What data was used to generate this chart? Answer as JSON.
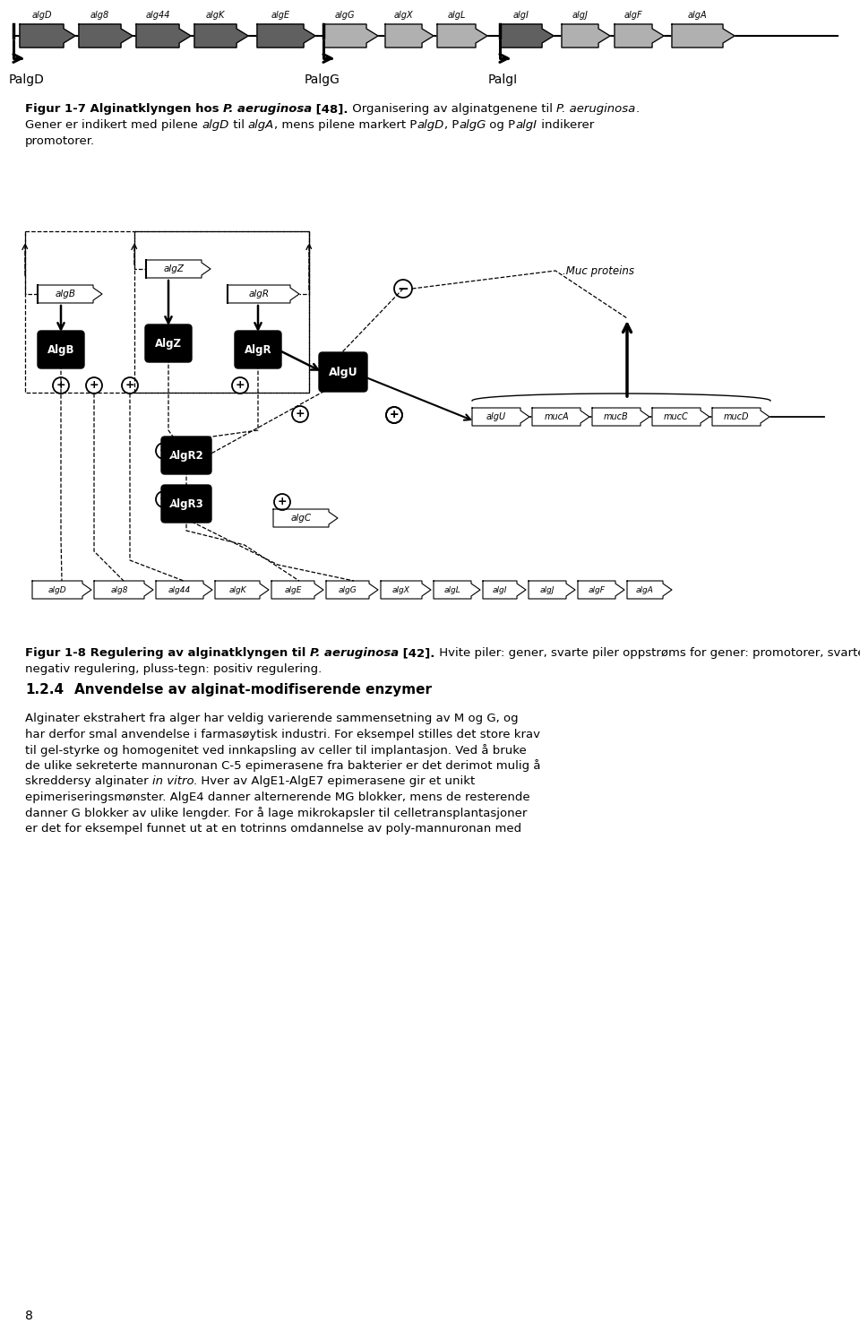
{
  "background_color": "#ffffff",
  "page_width": 9.6,
  "page_height": 14.96,
  "gene_names_top": [
    "algD",
    "alg8",
    "alg44",
    "algK",
    "algE",
    "algG",
    "algX",
    "algL",
    "algI",
    "algJ",
    "algF",
    "algA"
  ],
  "promoter_label1": "PalgD",
  "promoter_label2": "PalgG",
  "promoter_label3": "PalgI",
  "fig1_b1": "Figur 1-7 Alginatklyngen hos ",
  "fig1_i1": "P. aeruginosa",
  "fig1_b2": " [48].",
  "fig1_n1": " Organisering av alginatgenene til ",
  "fig1_i2": "P. aeruginosa",
  "fig1_n2": ".",
  "fig1_l2a": "Gener er indikert med pilene ",
  "fig1_l2b": "algD",
  "fig1_l2c": " til ",
  "fig1_l2d": "algA",
  "fig1_l2e": ", mens pilene markert P",
  "fig1_l2f": "algD",
  "fig1_l2g": ", P",
  "fig1_l2h": "algG",
  "fig1_l2i": " og P",
  "fig1_l2j": "algI",
  "fig1_l2k": " indikerer",
  "fig1_l3": "promotorer.",
  "fig2_b1": "Figur 1-8 Regulering av alginatklyngen til ",
  "fig2_i1": "P. aeruginosa",
  "fig2_b2": " [42].",
  "fig2_n1": " Hvite piler: gener, svarte piler oppstrøms for gener: promotorer, svarte bokser: proteiner, minus-tegn:",
  "fig2_l2": "negativ regulering, pluss-tegn: positiv regulering.",
  "sec_num": "1.2.4",
  "sec_title": "Anvendelse av alginat-modifiserende enzymer",
  "p1l1": "Alginater ekstrahert fra alger har veldig varierende sammensetning av M og G, og",
  "p1l2": "har derfor smal anvendelse i farmasøytisk industri. For eksempel stilles det store krav",
  "p1l3": "til gel-styrke og homogenitet ved innkapsling av celler til implantasjon. Ved å bruke",
  "p1l4": "de ulike sekreterte mannuronan C-5 epimerasene fra bakterier er det derimot mulig å",
  "p1l5a": "skreddersy alginater ",
  "p1l5b": "in vitro",
  "p1l5c": ". Hver av AlgE1-AlgE7 epimerasene gir et unikt",
  "p1l6": "epimeriseringsmønster. AlgE4 danner alternerende MG blokker, mens de resterende",
  "p1l7": "danner G blokker av ulike lengder. For å lage mikrokapsler til celletransplantasjoner",
  "p1l8": "er det for eksempel funnet ut at en totrinns omdannelse av poly-mannuronan med",
  "page_num": "8"
}
